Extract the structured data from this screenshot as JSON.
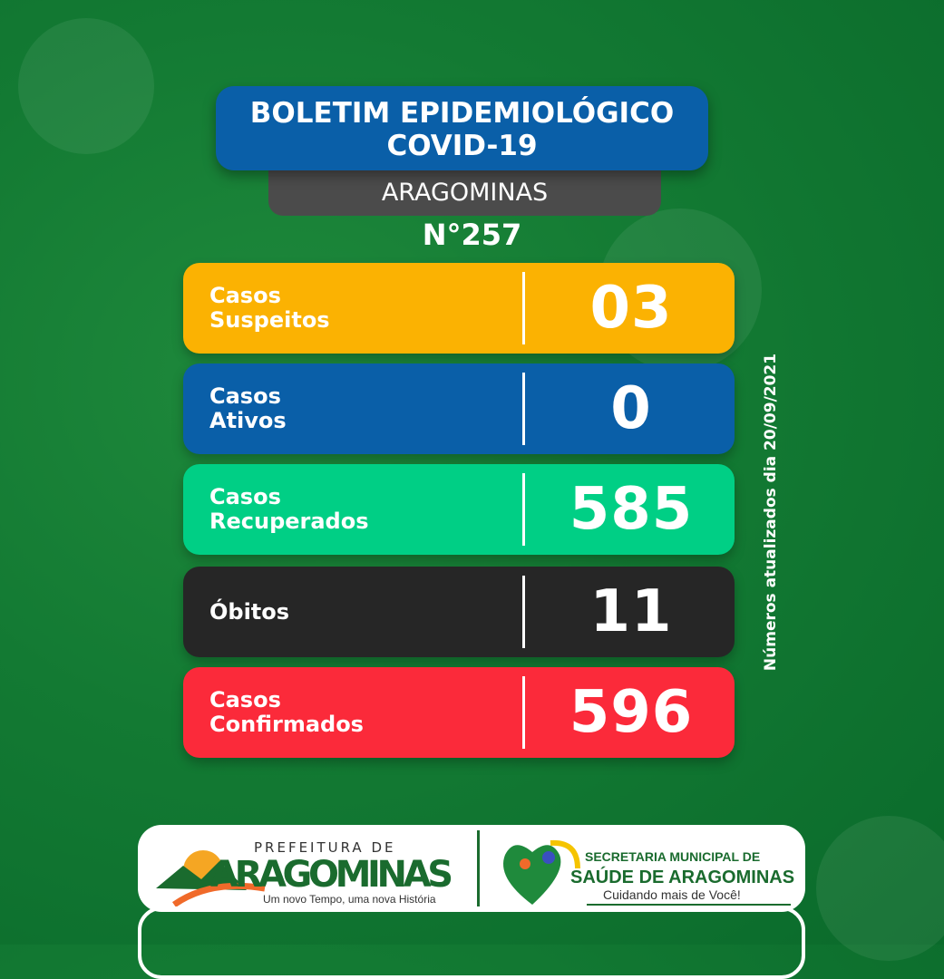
{
  "header": {
    "title_line1": "BOLETIM EPIDEMIOLÓGICO",
    "title_line2": "COVID-19",
    "city": "ARAGOMINAS",
    "bulletin_number": "N°257"
  },
  "rows": [
    {
      "label_line1": "Casos",
      "label_line2": "Suspeitos",
      "value": "03",
      "color": "#fbb202"
    },
    {
      "label_line1": "Casos",
      "label_line2": "Ativos",
      "value": "0",
      "color": "#0a5fa8"
    },
    {
      "label_line1": "Casos",
      "label_line2": "Recuperados",
      "value": "585",
      "color": "#00cf85"
    },
    {
      "label_line1": "Óbitos",
      "label_line2": "",
      "value": "11",
      "color": "#262626"
    },
    {
      "label_line1": "Casos",
      "label_line2": "Confirmados",
      "value": "596",
      "color": "#fb2a3a"
    }
  ],
  "side_note": "Números atualizados dia 20/09/2021",
  "footer": {
    "prefeitura": {
      "line1": "PREFEITURA DE",
      "name": "ARAGOMINAS",
      "slogan": "Um novo Tempo, uma nova História"
    },
    "secretaria": {
      "line1": "SECRETARIA MUNICIPAL DE",
      "line2": "SAÚDE DE ARAGOMINAS",
      "slogan": "Cuidando mais de Você!"
    }
  },
  "colors": {
    "background": "#137a33",
    "title_box": "#0a5fa8",
    "city_box": "#4b4b4b"
  }
}
